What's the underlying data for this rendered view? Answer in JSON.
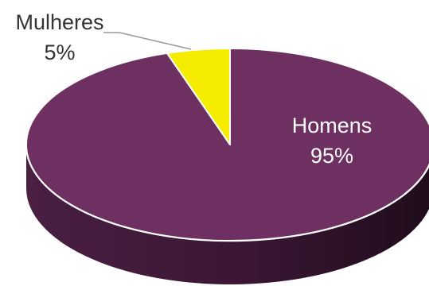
{
  "chart_data": {
    "type": "pie",
    "style": "3d",
    "slices": [
      {
        "label": "Homens",
        "value": 95,
        "value_label": "95%",
        "color": "#6E3060"
      },
      {
        "label": "Mulheres",
        "value": 5,
        "value_label": "5%",
        "color": "#F5EC00"
      }
    ],
    "title": "",
    "legend": "none",
    "label_style": "category and percentage"
  }
}
